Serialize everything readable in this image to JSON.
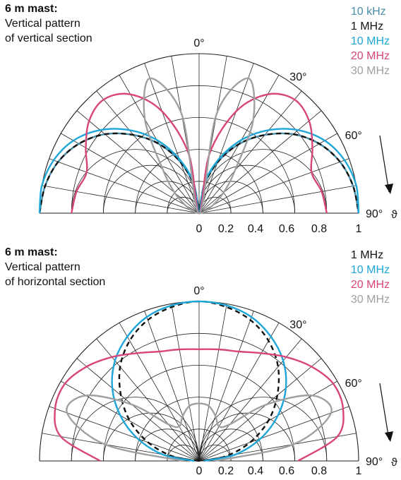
{
  "charts": [
    {
      "title_bold": "6 m mast:",
      "title_line1": "Vertical pattern",
      "title_line2": "of vertical section",
      "angle_labels": [
        "0°",
        "30°",
        "60°",
        "90°"
      ],
      "theta_label": "ϑ",
      "radial_ticks": [
        "0",
        "0.2",
        "0.4",
        "0.6",
        "0.8",
        "1"
      ],
      "legend": [
        {
          "label": "10 kHz",
          "color": "#4a8ca6"
        },
        {
          "label": "1 MHz",
          "color": "#111111"
        },
        {
          "label": "10 MHz",
          "color": "#1ea6d8"
        },
        {
          "label": "20 MHz",
          "color": "#d8457a"
        },
        {
          "label": "30 MHz",
          "color": "#9ea0a3"
        }
      ]
    },
    {
      "title_bold": "6 m mast:",
      "title_line1": "Vertical pattern",
      "title_line2": "of horizontal section",
      "angle_labels": [
        "0°",
        "30°",
        "60°",
        "90°"
      ],
      "theta_label": "ϑ",
      "radial_ticks": [
        "0",
        "0.2",
        "0.4",
        "0.6",
        "0.8",
        "1"
      ],
      "legend": [
        {
          "label": "1 MHz",
          "color": "#111111"
        },
        {
          "label": "10 MHz",
          "color": "#1ea6d8"
        },
        {
          "label": "20 MHz",
          "color": "#d8457a"
        },
        {
          "label": "30 MHz",
          "color": "#9ea0a3"
        }
      ]
    }
  ],
  "chart_data": [
    {
      "type": "polar",
      "angle_unit": "degrees from vertical (0° = zenith, 90° = horizon)",
      "r_range": [
        0,
        1
      ],
      "grid": true,
      "series": [
        {
          "name": "10 kHz",
          "style": "solid",
          "theta": [
            0,
            10,
            20,
            30,
            40,
            50,
            60,
            70,
            80,
            90
          ],
          "r": [
            0.0,
            0.17,
            0.34,
            0.5,
            0.64,
            0.77,
            0.87,
            0.94,
            0.98,
            1.0
          ]
        },
        {
          "name": "1 MHz",
          "style": "dashed",
          "theta": [
            0,
            10,
            20,
            30,
            40,
            50,
            60,
            70,
            80,
            90
          ],
          "r": [
            0.0,
            0.17,
            0.34,
            0.5,
            0.64,
            0.77,
            0.87,
            0.94,
            0.98,
            1.0
          ]
        },
        {
          "name": "10 MHz",
          "style": "solid",
          "theta": [
            0,
            10,
            20,
            30,
            40,
            50,
            60,
            70,
            80,
            90
          ],
          "r": [
            0.0,
            0.19,
            0.36,
            0.53,
            0.68,
            0.81,
            0.91,
            0.97,
            1.0,
            1.0
          ]
        },
        {
          "name": "20 MHz",
          "style": "solid",
          "theta": [
            0,
            10,
            20,
            30,
            40,
            50,
            60,
            70,
            80,
            90
          ],
          "r": [
            0.0,
            0.38,
            0.68,
            0.86,
            0.93,
            0.9,
            0.82,
            0.75,
            0.78,
            0.8
          ]
        },
        {
          "name": "30 MHz",
          "style": "solid",
          "theta": [
            0,
            10,
            20,
            30,
            40,
            50,
            60,
            70,
            80,
            90
          ],
          "r": [
            0.0,
            0.63,
            0.9,
            0.68,
            0.35,
            0.2,
            0.1,
            0.05,
            0.02,
            0.0
          ]
        }
      ]
    },
    {
      "type": "polar",
      "angle_unit": "degrees from vertical (0° = zenith, 90° = horizon)",
      "r_range": [
        0,
        1
      ],
      "grid": true,
      "series": [
        {
          "name": "1 MHz",
          "style": "dashed",
          "theta": [
            0,
            10,
            20,
            30,
            40,
            50,
            60,
            70,
            80,
            90
          ],
          "r": [
            1.0,
            0.98,
            0.94,
            0.87,
            0.77,
            0.64,
            0.5,
            0.34,
            0.17,
            0.0
          ]
        },
        {
          "name": "10 MHz",
          "style": "solid",
          "theta": [
            0,
            10,
            20,
            30,
            40,
            50,
            60,
            70,
            80,
            90
          ],
          "r": [
            1.0,
            0.99,
            0.96,
            0.9,
            0.82,
            0.71,
            0.57,
            0.41,
            0.23,
            0.03
          ]
        },
        {
          "name": "20 MHz",
          "style": "solid",
          "theta": [
            0,
            10,
            20,
            30,
            40,
            50,
            60,
            70,
            80,
            90
          ],
          "r": [
            0.7,
            0.71,
            0.73,
            0.78,
            0.85,
            0.92,
            0.97,
            0.96,
            0.88,
            0.62
          ]
        },
        {
          "name": "30 MHz",
          "style": "solid",
          "theta": [
            0,
            10,
            20,
            30,
            40,
            50,
            60,
            70,
            80,
            90
          ],
          "r": [
            0.36,
            0.35,
            0.3,
            0.25,
            0.3,
            0.55,
            0.82,
            0.88,
            0.6,
            0.1
          ]
        }
      ]
    }
  ]
}
